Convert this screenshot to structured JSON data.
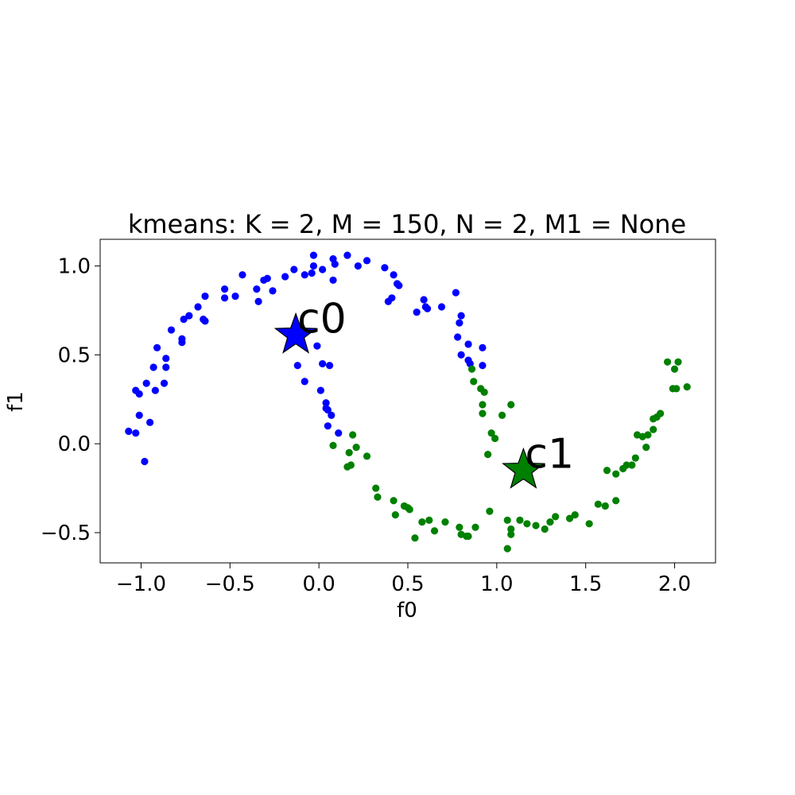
{
  "chart_data": {
    "type": "scatter",
    "title": "kmeans: K = 2, M = 150, N = 2, M1 = None",
    "xlabel": "f0",
    "ylabel": "f1",
    "xlim": [
      -1.23,
      2.23
    ],
    "ylim": [
      -0.67,
      1.15
    ],
    "xticks": [
      -1.0,
      -0.5,
      0.0,
      0.5,
      1.0,
      1.5,
      2.0
    ],
    "xtick_labels": [
      "−1.0",
      "−0.5",
      "0.0",
      "0.5",
      "1.0",
      "1.5",
      "2.0"
    ],
    "yticks": [
      1.0,
      0.5,
      0.0,
      -0.5
    ],
    "ytick_labels": [
      "1.0",
      "0.5",
      "0.0",
      "−0.5"
    ],
    "grid": false,
    "series": [
      {
        "color": "#0000ff",
        "points": [
          [
            -1.07,
            0.07
          ],
          [
            -1.03,
            0.06
          ],
          [
            -1.03,
            0.3
          ],
          [
            -1.01,
            0.16
          ],
          [
            -1.01,
            0.28
          ],
          [
            -0.98,
            -0.1
          ],
          [
            -0.97,
            0.34
          ],
          [
            -0.95,
            0.12
          ],
          [
            -0.93,
            0.43
          ],
          [
            -0.92,
            0.3
          ],
          [
            -0.91,
            0.54
          ],
          [
            -0.87,
            0.34
          ],
          [
            -0.86,
            0.48
          ],
          [
            -0.86,
            0.43
          ],
          [
            -0.83,
            0.64
          ],
          [
            -0.77,
            0.57
          ],
          [
            -0.77,
            0.59
          ],
          [
            -0.76,
            0.7
          ],
          [
            -0.73,
            0.72
          ],
          [
            -0.68,
            0.77
          ],
          [
            -0.65,
            0.7
          ],
          [
            -0.64,
            0.69
          ],
          [
            -0.64,
            0.83
          ],
          [
            -0.53,
            0.82
          ],
          [
            -0.53,
            0.87
          ],
          [
            -0.47,
            0.83
          ],
          [
            -0.43,
            0.95
          ],
          [
            -0.35,
            0.87
          ],
          [
            -0.34,
            0.8
          ],
          [
            -0.31,
            0.92
          ],
          [
            -0.29,
            0.93
          ],
          [
            -0.26,
            0.86
          ],
          [
            -0.19,
            0.94
          ],
          [
            -0.14,
            0.98
          ],
          [
            -0.12,
            0.44
          ],
          [
            -0.08,
            0.35
          ],
          [
            -0.08,
            0.95
          ],
          [
            -0.04,
            0.96
          ],
          [
            -0.03,
            1.06
          ],
          [
            -0.03,
            1.0
          ],
          [
            -0.01,
            0.55
          ],
          [
            0.02,
            0.98
          ],
          [
            0.01,
            0.3
          ],
          [
            0.02,
            0.45
          ],
          [
            0.04,
            0.2
          ],
          [
            0.04,
            0.23
          ],
          [
            0.05,
            0.19
          ],
          [
            0.05,
            0.1
          ],
          [
            0.06,
            0.44
          ],
          [
            0.07,
            0.16
          ],
          [
            0.08,
            0.92
          ],
          [
            0.09,
            1.01
          ],
          [
            0.08,
            1.04
          ],
          [
            0.11,
            0.06
          ],
          [
            0.16,
            1.06
          ],
          [
            0.22,
            1.0
          ],
          [
            0.27,
            1.03
          ],
          [
            0.37,
            0.99
          ],
          [
            0.39,
            0.8
          ],
          [
            0.41,
            0.82
          ],
          [
            0.42,
            0.95
          ],
          [
            0.44,
            0.9
          ],
          [
            0.45,
            0.89
          ],
          [
            0.55,
            0.74
          ],
          [
            0.59,
            0.81
          ],
          [
            0.6,
            0.77
          ],
          [
            0.61,
            0.76
          ],
          [
            0.69,
            0.77
          ],
          [
            0.77,
            0.85
          ],
          [
            0.78,
            0.6
          ],
          [
            0.79,
            0.68
          ],
          [
            0.8,
            0.72
          ],
          [
            0.8,
            0.5
          ],
          [
            0.84,
            0.56
          ],
          [
            0.84,
            0.47
          ],
          [
            0.92,
            0.54
          ],
          [
            0.92,
            0.44
          ],
          [
            0.85,
            0.45
          ]
        ]
      },
      {
        "color": "#008000",
        "points": [
          [
            0.08,
            -0.01
          ],
          [
            0.16,
            -0.13
          ],
          [
            0.17,
            -0.05
          ],
          [
            0.18,
            -0.12
          ],
          [
            0.19,
            0.05
          ],
          [
            0.21,
            -0.02
          ],
          [
            0.27,
            -0.07
          ],
          [
            0.32,
            -0.25
          ],
          [
            0.33,
            -0.3
          ],
          [
            0.42,
            -0.32
          ],
          [
            0.43,
            -0.4
          ],
          [
            0.48,
            -0.35
          ],
          [
            0.5,
            -0.36
          ],
          [
            0.51,
            -0.37
          ],
          [
            0.54,
            -0.53
          ],
          [
            0.58,
            -0.44
          ],
          [
            0.62,
            -0.43
          ],
          [
            0.65,
            -0.49
          ],
          [
            0.71,
            -0.44
          ],
          [
            0.79,
            -0.47
          ],
          [
            0.8,
            -0.51
          ],
          [
            0.83,
            -0.52
          ],
          [
            0.84,
            -0.52
          ],
          [
            0.86,
            0.42
          ],
          [
            0.87,
            0.35
          ],
          [
            0.88,
            -0.47
          ],
          [
            0.91,
            0.31
          ],
          [
            0.92,
            0.17
          ],
          [
            0.92,
            0.22
          ],
          [
            0.93,
            0.29
          ],
          [
            0.95,
            -0.06
          ],
          [
            0.96,
            -0.38
          ],
          [
            0.97,
            0.06
          ],
          [
            0.99,
            0.03
          ],
          [
            1.03,
            0.16
          ],
          [
            1.06,
            -0.43
          ],
          [
            1.06,
            -0.59
          ],
          [
            1.08,
            0.22
          ],
          [
            1.08,
            -0.48
          ],
          [
            1.08,
            -0.51
          ],
          [
            1.13,
            -0.43
          ],
          [
            1.17,
            -0.45
          ],
          [
            1.22,
            -0.46
          ],
          [
            1.27,
            -0.48
          ],
          [
            1.3,
            -0.44
          ],
          [
            1.33,
            -0.41
          ],
          [
            1.41,
            -0.42
          ],
          [
            1.44,
            -0.4
          ],
          [
            1.52,
            -0.45
          ],
          [
            1.57,
            -0.34
          ],
          [
            1.61,
            -0.35
          ],
          [
            1.62,
            -0.15
          ],
          [
            1.67,
            -0.17
          ],
          [
            1.67,
            -0.32
          ],
          [
            1.71,
            -0.14
          ],
          [
            1.73,
            -0.12
          ],
          [
            1.76,
            -0.12
          ],
          [
            1.78,
            -0.08
          ],
          [
            1.79,
            0.05
          ],
          [
            1.82,
            0.04
          ],
          [
            1.84,
            -0.02
          ],
          [
            1.85,
            0.05
          ],
          [
            1.88,
            0.08
          ],
          [
            1.88,
            0.14
          ],
          [
            1.9,
            0.15
          ],
          [
            1.92,
            0.17
          ],
          [
            1.96,
            0.46
          ],
          [
            1.99,
            0.31
          ],
          [
            2.0,
            0.42
          ],
          [
            2.01,
            0.31
          ],
          [
            2.02,
            0.46
          ],
          [
            2.07,
            0.32
          ]
        ]
      }
    ],
    "centroids": [
      {
        "label": "c0",
        "x": -0.13,
        "y": 0.62,
        "color": "#0000ff"
      },
      {
        "label": "c1",
        "x": 1.15,
        "y": -0.14,
        "color": "#008000"
      }
    ]
  }
}
